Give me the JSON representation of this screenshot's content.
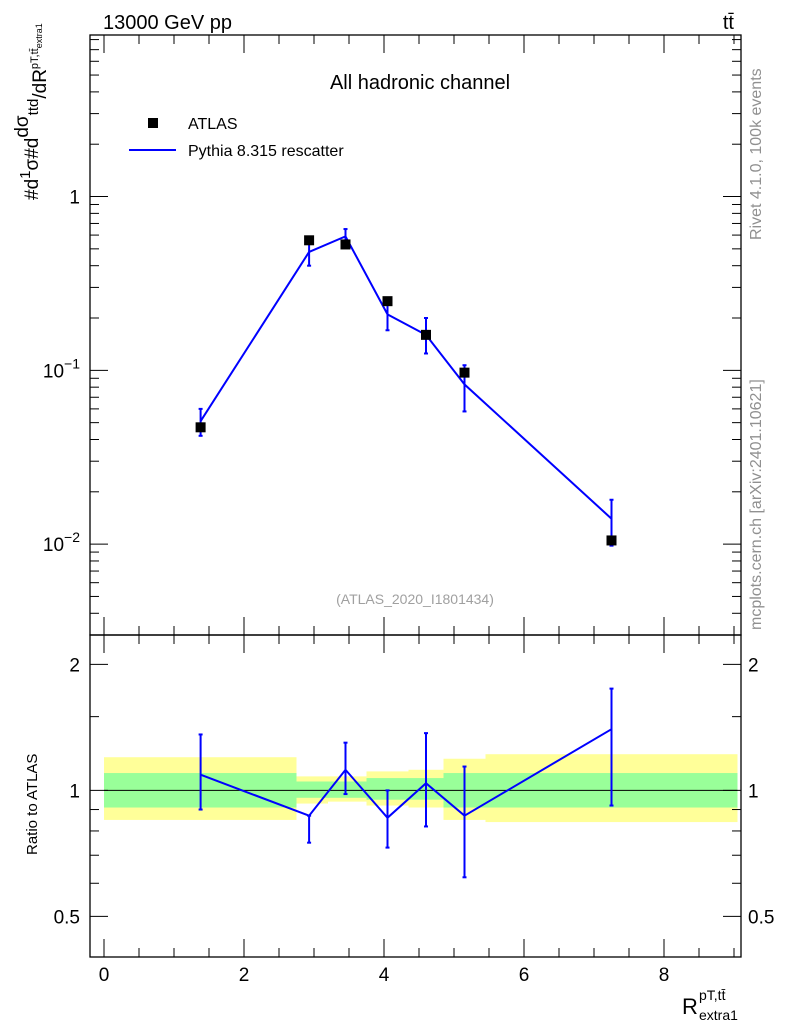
{
  "header": {
    "energy_label": "13000 GeV pp",
    "process_label": "tt̄"
  },
  "side_labels": {
    "rivet": "Rivet 4.1.0,  100k events",
    "source": "mcplots.cern.ch [arXiv:2401.10621]"
  },
  "chart_data": [
    {
      "type": "scatter",
      "panel": "main",
      "title": "All hadronic channel",
      "analysis_label": "(ATLAS_2020_I1801434)",
      "ylabel": "#d¹⁄σ#d dσ/dR",
      "yscale": "log",
      "ylim": [
        0.003,
        8.5
      ],
      "xlim": [
        -0.2,
        9.1
      ],
      "ytick_labels": [
        {
          "value": 1,
          "base": "1",
          "exp": ""
        },
        {
          "value": 0.1,
          "base": "10",
          "exp": "−1"
        },
        {
          "value": 0.01,
          "base": "10",
          "exp": "−2"
        }
      ],
      "legend": [
        {
          "name": "ATLAS",
          "style": "marker",
          "color": "#000000"
        },
        {
          "name": "Pythia 8.315 rescatter",
          "style": "line",
          "color": "#0000ff"
        }
      ],
      "series": [
        {
          "name": "ATLAS",
          "color": "#000000",
          "x": [
            1.38,
            2.93,
            3.45,
            4.05,
            4.6,
            5.15,
            7.25
          ],
          "y": [
            0.047,
            0.56,
            0.53,
            0.25,
            0.16,
            0.097,
            0.0105
          ]
        },
        {
          "name": "Pythia 8.315 rescatter",
          "color": "#0000ff",
          "x": [
            1.38,
            2.93,
            3.45,
            4.05,
            4.6,
            5.15,
            7.25
          ],
          "y": [
            0.051,
            0.48,
            0.59,
            0.21,
            0.16,
            0.083,
            0.014
          ],
          "yerr_low": [
            0.042,
            0.4,
            0.54,
            0.17,
            0.125,
            0.058,
            0.0098
          ],
          "yerr_high": [
            0.06,
            0.57,
            0.65,
            0.25,
            0.2,
            0.107,
            0.018
          ]
        }
      ]
    },
    {
      "type": "line",
      "panel": "ratio",
      "ylabel": "Ratio to ATLAS",
      "xlabel": "R",
      "xlabel_sup": "pT,tt̄",
      "xlabel_sub": "extra1",
      "ylim": [
        0.4,
        2.35
      ],
      "xlim": [
        -0.2,
        9.1
      ],
      "xtick_labels": [
        "0",
        "2",
        "4",
        "6",
        "8"
      ],
      "ytick_labels": [
        "0.5",
        "1",
        "2"
      ],
      "bands": [
        {
          "x0": 0.0,
          "x1": 2.75,
          "inner": [
            0.91,
            1.1
          ],
          "outer": [
            0.85,
            1.2
          ]
        },
        {
          "x0": 2.75,
          "x1": 3.2,
          "inner": [
            0.96,
            1.05
          ],
          "outer": [
            0.93,
            1.08
          ]
        },
        {
          "x0": 3.2,
          "x1": 3.75,
          "inner": [
            0.96,
            1.05
          ],
          "outer": [
            0.94,
            1.08
          ]
        },
        {
          "x0": 3.75,
          "x1": 4.35,
          "inner": [
            0.95,
            1.07
          ],
          "outer": [
            0.92,
            1.11
          ]
        },
        {
          "x0": 4.35,
          "x1": 4.85,
          "inner": [
            0.95,
            1.07
          ],
          "outer": [
            0.91,
            1.12
          ]
        },
        {
          "x0": 4.85,
          "x1": 5.45,
          "inner": [
            0.91,
            1.1
          ],
          "outer": [
            0.85,
            1.19
          ]
        },
        {
          "x0": 5.45,
          "x1": 9.05,
          "inner": [
            0.91,
            1.1
          ],
          "outer": [
            0.84,
            1.22
          ]
        }
      ],
      "series": [
        {
          "name": "Pythia 8.315 rescatter / ATLAS",
          "color": "#0000ff",
          "x": [
            1.38,
            2.93,
            3.45,
            4.05,
            4.6,
            5.15,
            7.25
          ],
          "y": [
            1.09,
            0.87,
            1.12,
            0.86,
            1.04,
            0.87,
            1.4
          ],
          "yerr_low": [
            0.9,
            0.75,
            0.98,
            0.73,
            0.82,
            0.62,
            0.92
          ],
          "yerr_high": [
            1.36,
            0.87,
            1.3,
            1.0,
            1.37,
            1.14,
            1.75
          ]
        }
      ]
    }
  ]
}
